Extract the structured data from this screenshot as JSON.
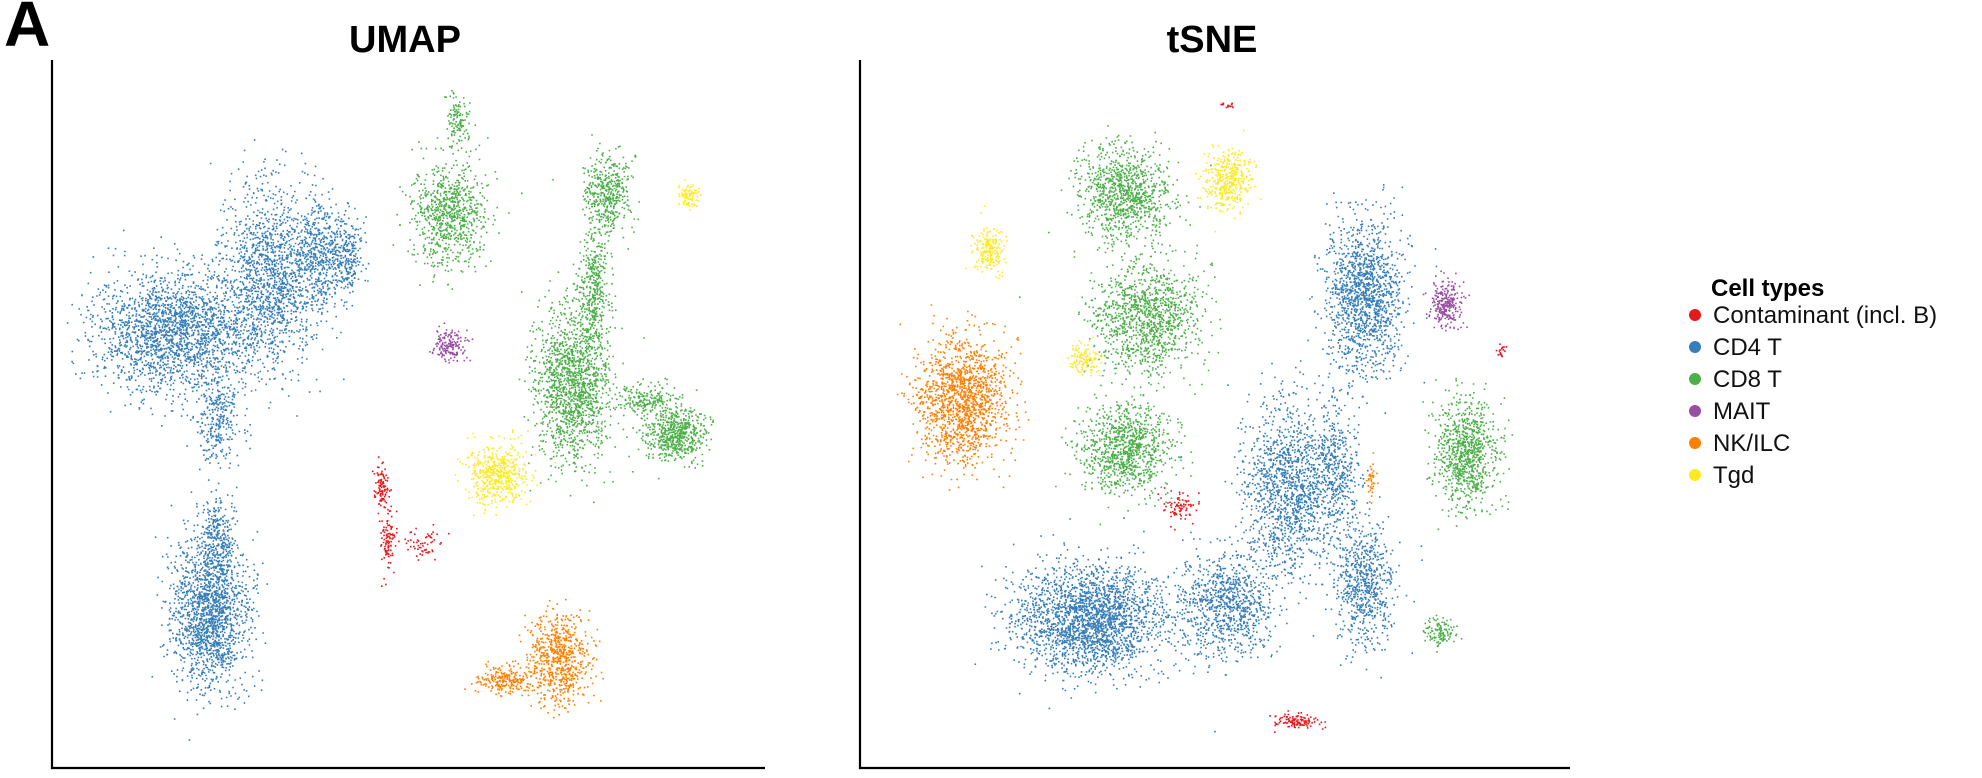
{
  "panel_label": "A",
  "legend": {
    "title": "Cell types",
    "items": [
      {
        "label": "Contaminant (incl. B)",
        "color": "#e41a1c"
      },
      {
        "label": "CD4 T",
        "color": "#377eb8"
      },
      {
        "label": "CD8 T",
        "color": "#4daf4a"
      },
      {
        "label": "MAIT",
        "color": "#984ea3"
      },
      {
        "label": "NK/ILC",
        "color": "#ff7f00"
      },
      {
        "label": "Tgd",
        "color": "#ffe91f"
      }
    ],
    "placement": "right"
  },
  "chart_data": [
    {
      "type": "scatter",
      "title": "UMAP",
      "xlabel": "",
      "ylabel": "",
      "xlim": [
        0,
        100
      ],
      "ylim": [
        0,
        100
      ],
      "grid": false,
      "ticks": false,
      "series": [
        {
          "name": "CD4 T",
          "color": "#377eb8",
          "clusters": [
            {
              "x": 16,
              "y": 62,
              "sx": 11,
              "sy": 8,
              "n": 2200
            },
            {
              "x": 30,
              "y": 70,
              "sx": 6,
              "sy": 12,
              "n": 1400
            },
            {
              "x": 37,
              "y": 73,
              "sx": 3,
              "sy": 7,
              "n": 450
            },
            {
              "x": 41,
              "y": 73,
              "sx": 2,
              "sy": 5,
              "n": 250
            },
            {
              "x": 22,
              "y": 49,
              "sx": 3,
              "sy": 6,
              "n": 300
            },
            {
              "x": 21,
              "y": 21,
              "sx": 5,
              "sy": 10,
              "n": 1700
            },
            {
              "x": 22,
              "y": 32,
              "sx": 2,
              "sy": 5,
              "n": 250
            }
          ]
        },
        {
          "name": "CD8 T",
          "color": "#4daf4a",
          "clusters": [
            {
              "x": 56,
              "y": 79,
              "sx": 5,
              "sy": 7,
              "n": 800
            },
            {
              "x": 57,
              "y": 93,
              "sx": 1.5,
              "sy": 3,
              "n": 120
            },
            {
              "x": 74,
              "y": 54,
              "sx": 5,
              "sy": 10,
              "n": 1500
            },
            {
              "x": 79,
              "y": 82,
              "sx": 3,
              "sy": 5,
              "n": 450
            },
            {
              "x": 77,
              "y": 68,
              "sx": 2,
              "sy": 8,
              "n": 400
            },
            {
              "x": 89,
              "y": 47,
              "sx": 4,
              "sy": 3.5,
              "n": 600
            },
            {
              "x": 85,
              "y": 52,
              "sx": 4,
              "sy": 2,
              "n": 200
            }
          ]
        },
        {
          "name": "MAIT",
          "color": "#984ea3",
          "clusters": [
            {
              "x": 56,
              "y": 60,
              "sx": 2,
              "sy": 2,
              "n": 160
            }
          ]
        },
        {
          "name": "Contaminant (incl. B)",
          "color": "#e41a1c",
          "clusters": [
            {
              "x": 46,
              "y": 39,
              "sx": 1,
              "sy": 3,
              "n": 100
            },
            {
              "x": 47,
              "y": 31,
              "sx": 0.9,
              "sy": 4,
              "n": 100
            },
            {
              "x": 52,
              "y": 31,
              "sx": 2.5,
              "sy": 2,
              "n": 60
            }
          ]
        },
        {
          "name": "NK/ILC",
          "color": "#ff7f00",
          "clusters": [
            {
              "x": 72,
              "y": 14,
              "sx": 4,
              "sy": 6,
              "n": 700
            },
            {
              "x": 64,
              "y": 11,
              "sx": 3.5,
              "sy": 2,
              "n": 220
            }
          ]
        },
        {
          "name": "Tgd",
          "color": "#ffe91f",
          "clusters": [
            {
              "x": 63,
              "y": 41,
              "sx": 4,
              "sy": 4,
              "n": 500
            },
            {
              "x": 91,
              "y": 82,
              "sx": 1.5,
              "sy": 1.5,
              "n": 80
            }
          ]
        }
      ]
    },
    {
      "type": "scatter",
      "title": "tSNE",
      "xlabel": "",
      "ylabel": "",
      "xlim": [
        0,
        100
      ],
      "ylim": [
        0,
        100
      ],
      "grid": false,
      "ticks": false,
      "series": [
        {
          "name": "CD8 T",
          "color": "#4daf4a",
          "clusters": [
            {
              "x": 37,
              "y": 82,
              "sx": 6,
              "sy": 6,
              "n": 1000
            },
            {
              "x": 40,
              "y": 64,
              "sx": 7,
              "sy": 7,
              "n": 1200
            },
            {
              "x": 37,
              "y": 45,
              "sx": 6,
              "sy": 6,
              "n": 1000
            },
            {
              "x": 87,
              "y": 44,
              "sx": 4,
              "sy": 7,
              "n": 900
            },
            {
              "x": 83,
              "y": 18,
              "sx": 2,
              "sy": 2,
              "n": 120
            }
          ]
        },
        {
          "name": "CD4 T",
          "color": "#377eb8",
          "clusters": [
            {
              "x": 72,
              "y": 67,
              "sx": 5,
              "sy": 10,
              "n": 1400
            },
            {
              "x": 61,
              "y": 39,
              "sx": 6,
              "sy": 11,
              "n": 1400
            },
            {
              "x": 32,
              "y": 20,
              "sx": 10,
              "sy": 7,
              "n": 2400
            },
            {
              "x": 52,
              "y": 22,
              "sx": 6,
              "sy": 7,
              "n": 900
            },
            {
              "x": 72,
              "y": 25,
              "sx": 4,
              "sy": 8,
              "n": 700
            },
            {
              "x": 68,
              "y": 42,
              "sx": 3,
              "sy": 8,
              "n": 400
            }
          ]
        },
        {
          "name": "NK/ILC",
          "color": "#ff7f00",
          "clusters": [
            {
              "x": 13,
              "y": 52,
              "sx": 6,
              "sy": 8,
              "n": 1500
            },
            {
              "x": 73,
              "y": 40,
              "sx": 0.6,
              "sy": 2,
              "n": 40
            }
          ]
        },
        {
          "name": "Tgd",
          "color": "#ffe91f",
          "clusters": [
            {
              "x": 52,
              "y": 84,
              "sx": 3,
              "sy": 4,
              "n": 400
            },
            {
              "x": 17,
              "y": 74,
              "sx": 2,
              "sy": 3,
              "n": 200
            },
            {
              "x": 31,
              "y": 58,
              "sx": 2,
              "sy": 2,
              "n": 120
            }
          ]
        },
        {
          "name": "MAIT",
          "color": "#984ea3",
          "clusters": [
            {
              "x": 84,
              "y": 66,
              "sx": 2,
              "sy": 3,
              "n": 260
            }
          ]
        },
        {
          "name": "Contaminant (incl. B)",
          "color": "#e41a1c",
          "clusters": [
            {
              "x": 62,
              "y": 5,
              "sx": 3,
              "sy": 1,
              "n": 120
            },
            {
              "x": 45,
              "y": 36,
              "sx": 2,
              "sy": 2,
              "n": 80
            },
            {
              "x": 92,
              "y": 59,
              "sx": 0.5,
              "sy": 1,
              "n": 20
            },
            {
              "x": 52,
              "y": 95,
              "sx": 1,
              "sy": 0.3,
              "n": 15
            }
          ]
        }
      ]
    }
  ]
}
